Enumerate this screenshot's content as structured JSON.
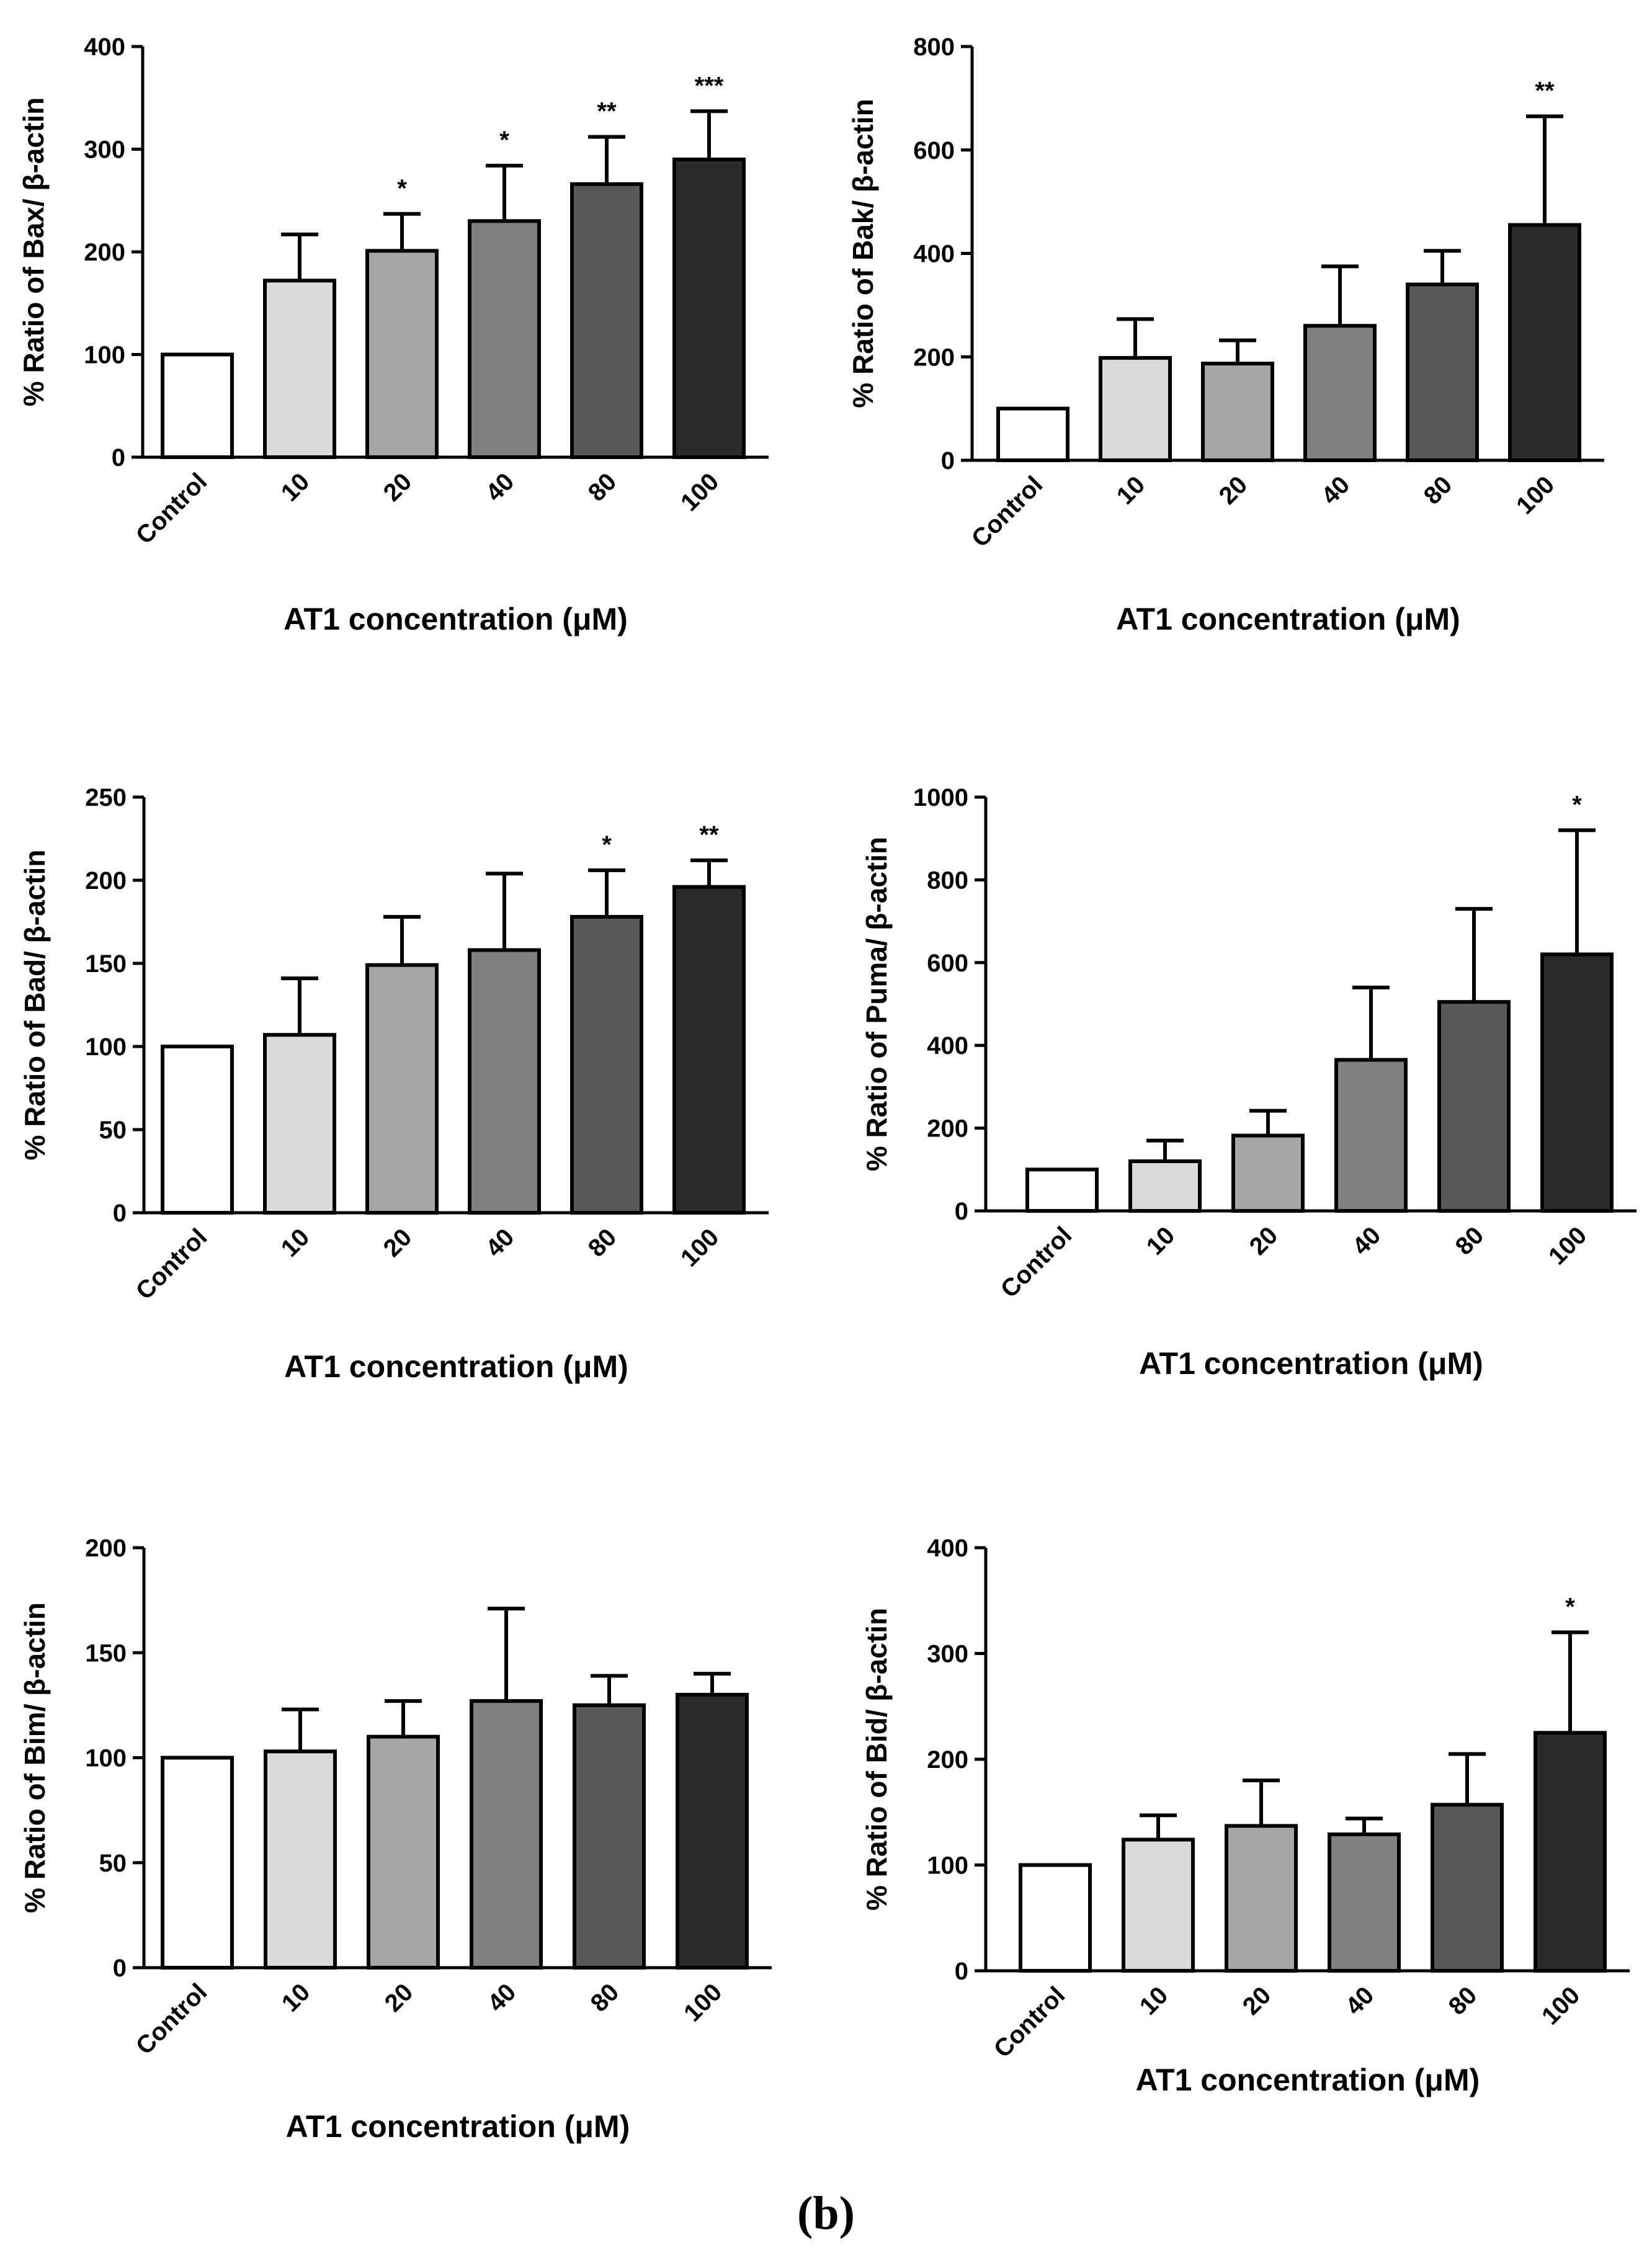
{
  "panel_label": "(b)",
  "chart_data": [
    {
      "type": "bar",
      "title": "",
      "categories": [
        "Control",
        "10",
        "20",
        "40",
        "80",
        "100"
      ],
      "values": [
        100,
        172,
        201,
        230,
        266,
        290
      ],
      "errors": [
        0,
        45,
        36,
        54,
        46,
        47
      ],
      "significance": [
        "",
        "",
        "*",
        "*",
        "**",
        "***"
      ],
      "bar_colors": [
        "#ffffff",
        "#d9d9d9",
        "#a6a6a6",
        "#808080",
        "#595959",
        "#2b2b2b"
      ],
      "ylabel": "% Ratio of Bax/ β-actin",
      "xlabel": "AT1 concentration (μM)",
      "ylim": [
        0,
        400
      ],
      "yticks": [
        0,
        100,
        200,
        300,
        400
      ]
    },
    {
      "type": "bar",
      "title": "",
      "categories": [
        "Control",
        "10",
        "20",
        "40",
        "80",
        "100"
      ],
      "values": [
        100,
        198,
        187,
        260,
        340,
        455
      ],
      "errors": [
        0,
        75,
        45,
        115,
        65,
        210
      ],
      "significance": [
        "",
        "",
        "",
        "",
        "",
        "**"
      ],
      "bar_colors": [
        "#ffffff",
        "#d9d9d9",
        "#a6a6a6",
        "#808080",
        "#595959",
        "#2b2b2b"
      ],
      "ylabel": "% Ratio of Bak/ β-actin",
      "xlabel": "AT1 concentration (μM)",
      "ylim": [
        0,
        800
      ],
      "yticks": [
        0,
        200,
        400,
        600,
        800
      ]
    },
    {
      "type": "bar",
      "title": "",
      "categories": [
        "Control",
        "10",
        "20",
        "40",
        "80",
        "100"
      ],
      "values": [
        100,
        107,
        149,
        158,
        178,
        196
      ],
      "errors": [
        0,
        34,
        29,
        46,
        28,
        16
      ],
      "significance": [
        "",
        "",
        "",
        "",
        "*",
        "**"
      ],
      "bar_colors": [
        "#ffffff",
        "#d9d9d9",
        "#a6a6a6",
        "#808080",
        "#595959",
        "#2b2b2b"
      ],
      "ylabel": "% Ratio of Bad/ β-actin",
      "xlabel": "AT1 concentration (μM)",
      "ylim": [
        0,
        250
      ],
      "yticks": [
        0,
        50,
        100,
        150,
        200,
        250
      ]
    },
    {
      "type": "bar",
      "title": "",
      "categories": [
        "Control",
        "10",
        "20",
        "40",
        "80",
        "100"
      ],
      "values": [
        100,
        120,
        182,
        365,
        505,
        620
      ],
      "errors": [
        0,
        50,
        60,
        175,
        225,
        300
      ],
      "significance": [
        "",
        "",
        "",
        "",
        "",
        "*"
      ],
      "bar_colors": [
        "#ffffff",
        "#d9d9d9",
        "#a6a6a6",
        "#808080",
        "#595959",
        "#2b2b2b"
      ],
      "ylabel": "% Ratio of Puma/ β-actin",
      "xlabel": "AT1 concentration (μM)",
      "ylim": [
        0,
        1000
      ],
      "yticks": [
        0,
        200,
        400,
        600,
        800,
        1000
      ]
    },
    {
      "type": "bar",
      "title": "",
      "categories": [
        "Control",
        "10",
        "20",
        "40",
        "80",
        "100"
      ],
      "values": [
        100,
        103,
        110,
        127,
        125,
        130
      ],
      "errors": [
        0,
        20,
        17,
        44,
        14,
        10
      ],
      "significance": [
        "",
        "",
        "",
        "",
        "",
        ""
      ],
      "bar_colors": [
        "#ffffff",
        "#d9d9d9",
        "#a6a6a6",
        "#808080",
        "#595959",
        "#2b2b2b"
      ],
      "ylabel": "% Ratio of Bim/ β-actin",
      "xlabel": "AT1 concentration (μM)",
      "ylim": [
        0,
        200
      ],
      "yticks": [
        0,
        50,
        100,
        150,
        200
      ]
    },
    {
      "type": "bar",
      "title": "",
      "categories": [
        "Control",
        "10",
        "20",
        "40",
        "80",
        "100"
      ],
      "values": [
        100,
        124,
        137,
        129,
        157,
        225
      ],
      "errors": [
        0,
        23,
        43,
        15,
        48,
        95
      ],
      "significance": [
        "",
        "",
        "",
        "",
        "",
        "*"
      ],
      "bar_colors": [
        "#ffffff",
        "#d9d9d9",
        "#a6a6a6",
        "#808080",
        "#595959",
        "#2b2b2b"
      ],
      "ylabel": "% Ratio of Bid/ β-actin",
      "xlabel": "AT1 concentration (μM)",
      "ylim": [
        0,
        400
      ],
      "yticks": [
        0,
        100,
        200,
        300,
        400
      ]
    }
  ]
}
